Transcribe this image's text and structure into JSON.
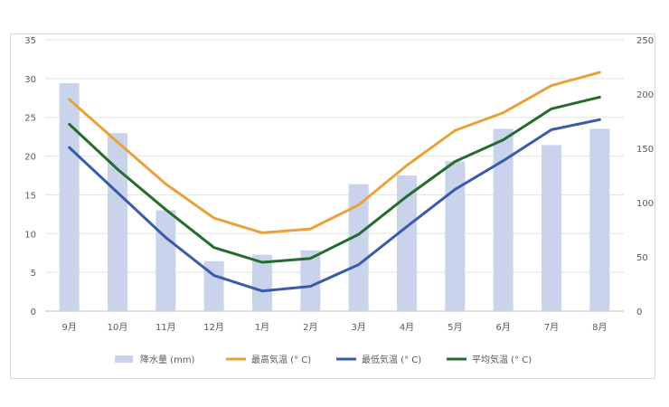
{
  "chart_data": {
    "type": "bar+line",
    "categories": [
      "9月",
      "10月",
      "11月",
      "12月",
      "1月",
      "2月",
      "3月",
      "4月",
      "5月",
      "6月",
      "7月",
      "8月"
    ],
    "series": [
      {
        "name": "降水量 (mm)",
        "type": "bar",
        "axis": "right",
        "color": "#c9d3ec",
        "values": [
          210,
          164,
          93,
          46,
          52,
          56,
          117,
          125,
          138,
          168,
          153,
          168
        ]
      },
      {
        "name": "最高気温 (° C)",
        "type": "line",
        "axis": "left",
        "color": "#e8a23a",
        "values": [
          27.3,
          21.8,
          16.4,
          12.0,
          10.1,
          10.6,
          13.7,
          18.8,
          23.3,
          25.6,
          29.1,
          30.8
        ]
      },
      {
        "name": "最低気温 (° C)",
        "type": "line",
        "axis": "left",
        "color": "#3a5ba8",
        "values": [
          21.1,
          15.3,
          9.5,
          4.6,
          2.6,
          3.2,
          6.0,
          10.9,
          15.7,
          19.4,
          23.4,
          24.7
        ]
      },
      {
        "name": "平均気温 (° C)",
        "type": "line",
        "axis": "left",
        "color": "#246b2e",
        "values": [
          24.1,
          18.3,
          13.1,
          8.2,
          6.3,
          6.8,
          9.9,
          14.8,
          19.3,
          22.1,
          26.1,
          27.6
        ]
      }
    ],
    "y_left": {
      "min": 0,
      "max": 35,
      "ticks": [
        "0",
        "5",
        "10",
        "15",
        "20",
        "25",
        "30",
        "35"
      ]
    },
    "y_right": {
      "min": 0,
      "max": 250,
      "ticks": [
        "0",
        "50",
        "100",
        "150",
        "200",
        "250"
      ]
    },
    "grid": true,
    "legend_position": "bottom"
  }
}
